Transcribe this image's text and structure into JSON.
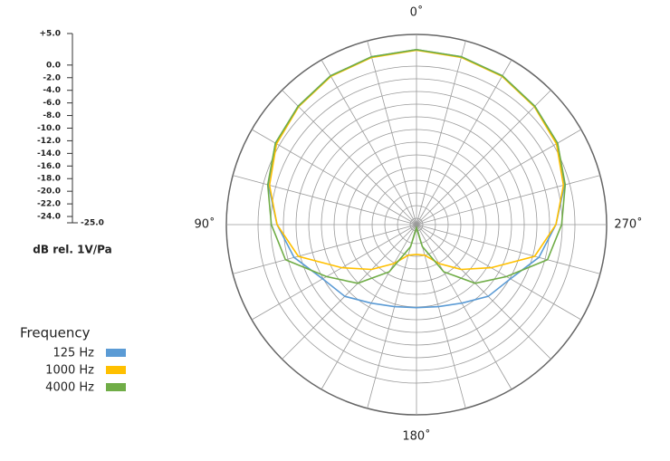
{
  "chart_data": {
    "type": "polar",
    "radial_label": "dB rel. 1V/Pa",
    "legend_title": "Frequency",
    "rlim": [
      -25,
      5
    ],
    "rticks": [
      {
        "value": 5,
        "label": "+5.0"
      },
      {
        "value": 0,
        "label": "0.0"
      },
      {
        "value": -2,
        "label": "-2.0"
      },
      {
        "value": -4,
        "label": "-4.0"
      },
      {
        "value": -6,
        "label": "-6.0"
      },
      {
        "value": -8,
        "label": "-8.0"
      },
      {
        "value": -10,
        "label": "-10.0"
      },
      {
        "value": -12,
        "label": "-12.0"
      },
      {
        "value": -14,
        "label": "-14.0"
      },
      {
        "value": -16,
        "label": "-16.0"
      },
      {
        "value": -18,
        "label": "-18.0"
      },
      {
        "value": -20,
        "label": "-20.0"
      },
      {
        "value": -22,
        "label": "-22.0"
      },
      {
        "value": -24,
        "label": "-24.0"
      },
      {
        "value": -25,
        "label": "-25.0"
      }
    ],
    "angle_ticks": [
      {
        "value": 0,
        "label": "0˚"
      },
      {
        "value": 90,
        "label": "90˚"
      },
      {
        "value": 180,
        "label": "180˚"
      },
      {
        "value": 270,
        "label": "270˚"
      }
    ],
    "angles": [
      0,
      15,
      30,
      45,
      60,
      75,
      90,
      105,
      120,
      135,
      150,
      165,
      180,
      195,
      210,
      225,
      240,
      255,
      270,
      285,
      300,
      315,
      330,
      345
    ],
    "series": [
      {
        "name": "125 Hz",
        "color": "#5b9bd5",
        "values": [
          2.6,
          2.4,
          2.1,
          1.4,
          0.7,
          -0.8,
          -3.0,
          -5.0,
          -7.9,
          -9.0,
          -10.7,
          -11.6,
          -11.9,
          -11.6,
          -10.7,
          -9.0,
          -7.9,
          -5.0,
          -3.0,
          -0.8,
          0.7,
          1.4,
          2.1,
          2.4
        ]
      },
      {
        "name": "1000 Hz",
        "color": "#ffc000",
        "values": [
          2.5,
          2.3,
          2.0,
          1.3,
          0.5,
          -1.0,
          -3.0,
          -5.7,
          -11.4,
          -15.0,
          -17.9,
          -20.0,
          -20.3,
          -20.0,
          -17.9,
          -15.0,
          -11.4,
          -5.7,
          -3.0,
          -1.0,
          0.5,
          1.3,
          2.0,
          2.3
        ]
      },
      {
        "name": "4000 Hz",
        "color": "#70ad47",
        "values": [
          2.6,
          2.4,
          2.1,
          1.4,
          0.7,
          -0.7,
          -2.1,
          -3.6,
          -8.6,
          -11.9,
          -16.4,
          -21.4,
          -24.5,
          -21.4,
          -16.4,
          -11.9,
          -8.6,
          -3.6,
          -2.1,
          -0.7,
          0.7,
          1.4,
          2.1,
          2.4
        ]
      }
    ]
  }
}
